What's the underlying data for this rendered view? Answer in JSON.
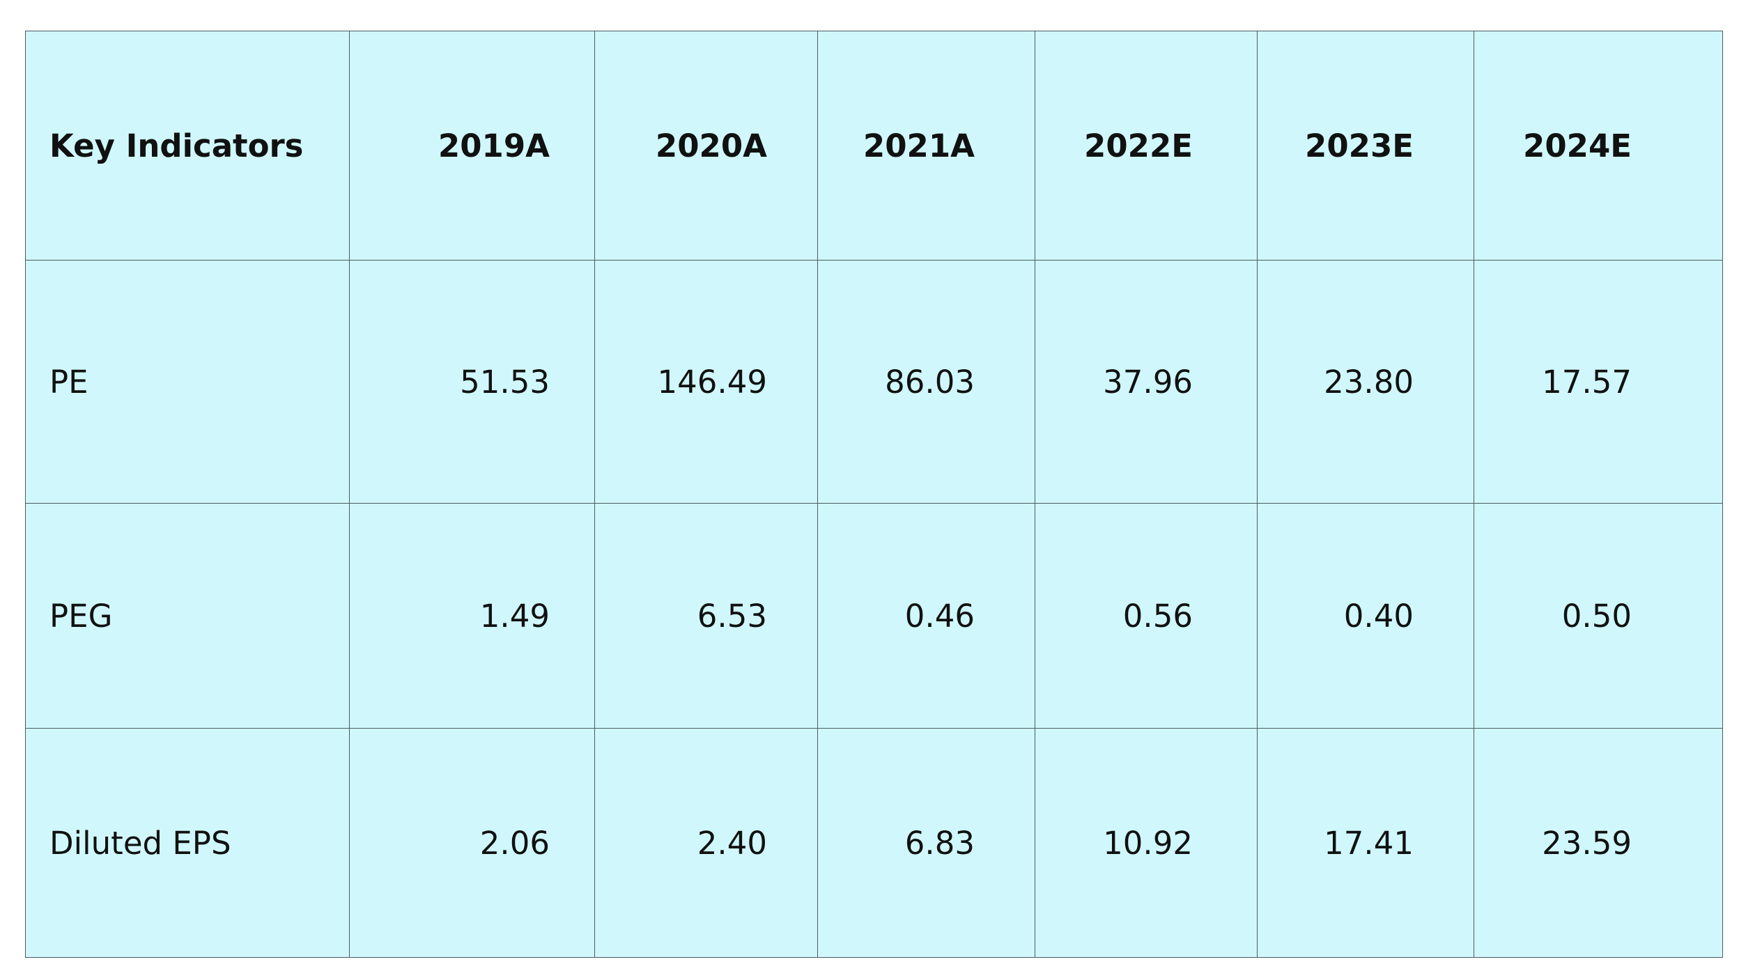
{
  "table": {
    "header": {
      "label": "Key Indicators",
      "years": [
        "2019A",
        "2020A",
        "2021A",
        "2022E",
        "2023E",
        "2024E"
      ]
    },
    "rows": [
      {
        "label": "PE",
        "values": [
          "51.53",
          "146.49",
          "86.03",
          "37.96",
          "23.80",
          "17.57"
        ]
      },
      {
        "label": "PEG",
        "values": [
          "1.49",
          "6.53",
          "0.46",
          "0.56",
          "0.40",
          "0.50"
        ]
      },
      {
        "label": "Diluted EPS",
        "values": [
          "2.06",
          "2.40",
          "6.83",
          "10.92",
          "17.41",
          "23.59"
        ]
      }
    ]
  },
  "colors": {
    "cell_background": "#d0f8fc",
    "border": "#4a5a60",
    "text": "#111111"
  }
}
